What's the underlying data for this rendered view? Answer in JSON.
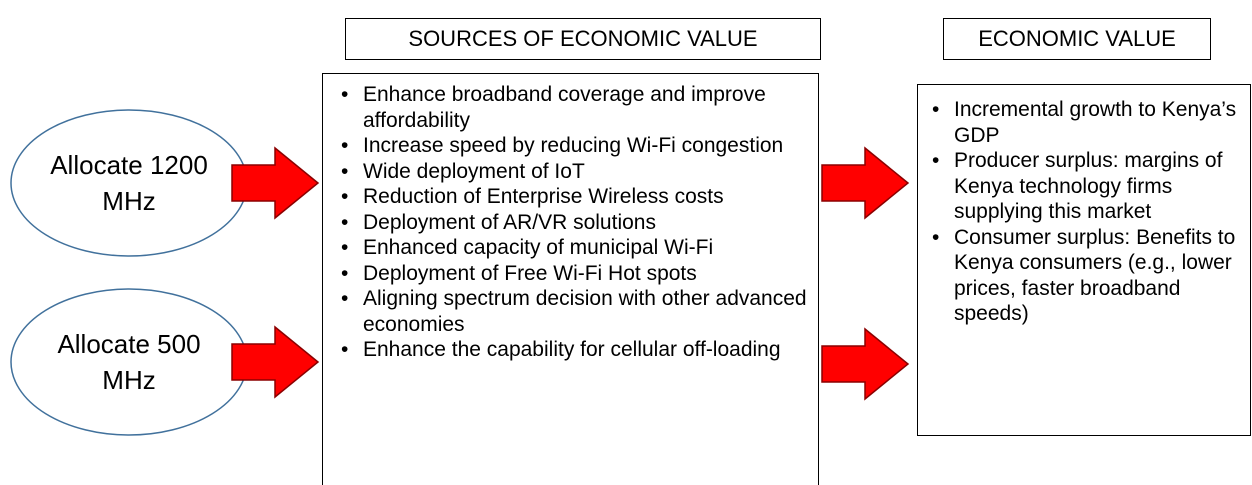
{
  "headers": {
    "sources": "SOURCES OF ECONOMIC VALUE",
    "value": "ECONOMIC VALUE"
  },
  "options": [
    {
      "label": "Allocate 1200 MHz"
    },
    {
      "label": "Allocate 500 MHz"
    }
  ],
  "sources": [
    "Enhance broadband coverage and improve affordability",
    "Increase speed by reducing Wi-Fi congestion",
    "Wide deployment of IoT",
    "Reduction of Enterprise Wireless costs",
    "Deployment of AR/VR solutions",
    "Enhanced capacity of municipal Wi-Fi",
    "Deployment of Free Wi-Fi Hot spots",
    "Aligning spectrum decision with other advanced economies",
    "Enhance the capability for cellular off-loading"
  ],
  "values": [
    "Incremental growth to Kenya’s GDP",
    "Producer surplus: margins of Kenya technology firms supplying this market",
    "Consumer surplus: Benefits to Kenya consumers (e.g., lower prices, faster broadband speeds)"
  ]
}
